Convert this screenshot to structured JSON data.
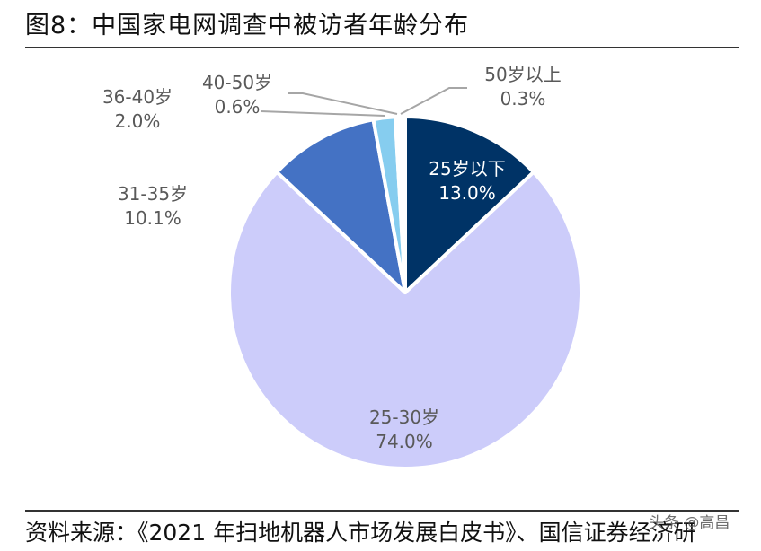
{
  "header": {
    "title": "图8：中国家电网调查中被访者年龄分布"
  },
  "footer": {
    "source": "资料来源：《2021 年扫地机器人市场发展白皮书》、国信证券经济研",
    "watermark": "头条 @高昌"
  },
  "chart_data": {
    "type": "pie",
    "title": "中国家电网调查中被访者年龄分布",
    "start_angle": "12 o'clock, clockwise",
    "categories": [
      "25岁以下",
      "25-30岁",
      "31-35岁",
      "36-40岁",
      "40-50岁",
      "50岁以上"
    ],
    "values": [
      13.0,
      74.0,
      10.1,
      2.0,
      0.6,
      0.3
    ],
    "value_labels": [
      "13.0%",
      "74.0%",
      "10.1%",
      "2.0%",
      "0.6%",
      "0.3%"
    ],
    "colors": [
      "#003366",
      "#CCCCFA",
      "#4472C4",
      "#86CDEF",
      "#FFFFFF",
      "#D9D9D9"
    ],
    "legend": "none (data labels on/near slices)",
    "units": "%"
  },
  "labels": [
    {
      "name": "25岁以下",
      "pct": "13.0%"
    },
    {
      "name": "25-30岁",
      "pct": "74.0%"
    },
    {
      "name": "31-35岁",
      "pct": "10.1%"
    },
    {
      "name": "36-40岁",
      "pct": "2.0%"
    },
    {
      "name": "40-50岁",
      "pct": "0.6%"
    },
    {
      "name": "50岁以上",
      "pct": "0.3%"
    }
  ]
}
